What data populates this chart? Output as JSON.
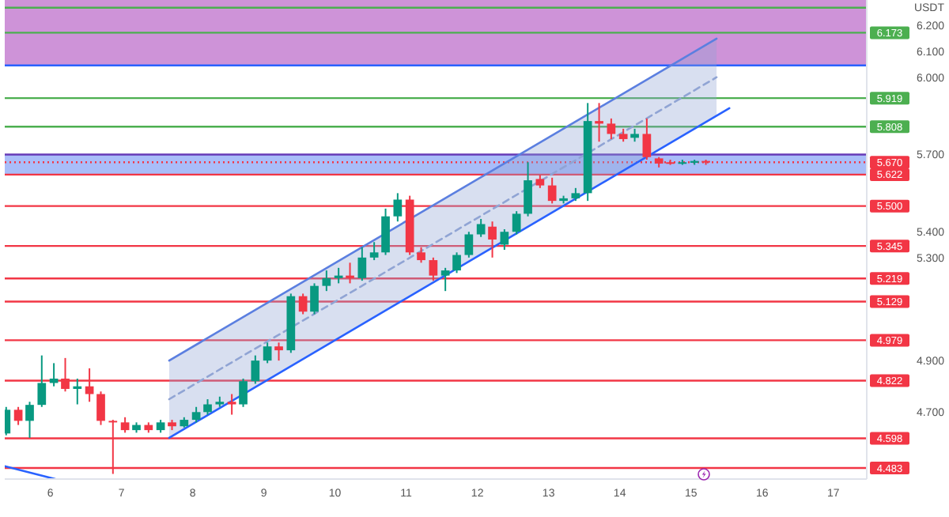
{
  "chart_data": {
    "type": "candlestick",
    "ylabel": "USDT",
    "xlim": [
      5.36,
      17.47
    ],
    "ylim": [
      4.44,
      6.3
    ],
    "xticks": [
      6,
      7,
      8,
      9,
      10,
      11,
      12,
      13,
      14,
      15,
      16,
      17
    ],
    "yticks": [
      {
        "value": 6.2,
        "label": "6.200"
      },
      {
        "value": 6.1,
        "label": "6.100"
      },
      {
        "value": 6.0,
        "label": "6.000"
      },
      {
        "value": 5.7,
        "label": "5.700"
      },
      {
        "value": 5.4,
        "label": "5.400"
      },
      {
        "value": 5.3,
        "label": "5.300"
      },
      {
        "value": 4.9,
        "label": "4.900"
      },
      {
        "value": 4.7,
        "label": "4.700"
      }
    ],
    "bands": [
      {
        "axis": "y",
        "from": 6.046,
        "to": 6.3,
        "color": "#ce93d8"
      },
      {
        "axis": "y",
        "from": 5.622,
        "to": 5.7,
        "color": "#a9bdf9"
      }
    ],
    "ref_lines": [
      {
        "axis": "y",
        "value": 6.27,
        "color": "#4caf50"
      },
      {
        "axis": "y",
        "value": 6.173,
        "label": "6.173",
        "color": "#4caf50"
      },
      {
        "axis": "y",
        "value": 6.046,
        "color": "#2962ff"
      },
      {
        "axis": "y",
        "value": 5.919,
        "label": "5.919",
        "color": "#4caf50"
      },
      {
        "axis": "y",
        "value": 5.808,
        "label": "5.808",
        "color": "#4caf50"
      },
      {
        "axis": "y",
        "value": 5.7,
        "color": "#673ab7"
      },
      {
        "axis": "y",
        "value": 5.67,
        "label": "5.670",
        "color": "#f23645",
        "line_style": "dotted"
      },
      {
        "axis": "y",
        "value": 5.622,
        "label": "5.622",
        "color": "#f23645"
      },
      {
        "axis": "y",
        "value": 5.5,
        "label": "5.500",
        "color": "#f23645"
      },
      {
        "axis": "y",
        "value": 5.345,
        "label": "5.345",
        "color": "#f23645"
      },
      {
        "axis": "y",
        "value": 5.219,
        "label": "5.219",
        "color": "#f23645"
      },
      {
        "axis": "y",
        "value": 5.129,
        "label": "5.129",
        "color": "#f23645"
      },
      {
        "axis": "y",
        "value": 4.979,
        "label": "4.979",
        "color": "#f23645"
      },
      {
        "axis": "y",
        "value": 4.822,
        "label": "4.822",
        "color": "#f23645"
      },
      {
        "axis": "y",
        "value": 4.598,
        "label": "4.598",
        "color": "#f23645"
      },
      {
        "axis": "y",
        "value": 4.483,
        "label": "4.483",
        "color": "#f23645"
      }
    ],
    "series": [
      {
        "type": "line",
        "x": [
          7.67,
          15.36
        ],
        "values": [
          4.75,
          6.0
        ],
        "lower": [
          4.6,
          5.85
        ],
        "upper": [
          4.9,
          6.15
        ],
        "color": "#90a4d4",
        "line_style": "dashed"
      },
      {
        "type": "line",
        "x": [
          7.67,
          15.36
        ],
        "values": [
          4.9,
          6.15
        ],
        "color": "#5b7fe0",
        "line_style": "solid"
      },
      {
        "type": "line",
        "x": [
          7.67,
          15.54
        ],
        "values": [
          4.6,
          5.88
        ],
        "color": "#2962ff",
        "line_style": "solid"
      },
      {
        "type": "line",
        "x": [
          5.36,
          6.07
        ],
        "values": [
          4.49,
          4.44
        ],
        "color": "#2962ff",
        "line_style": "solid"
      },
      {
        "x": [
          5.38,
          5.55,
          5.71,
          5.88,
          6.05,
          6.21,
          6.38,
          6.55,
          6.71,
          6.88,
          7.05,
          7.21,
          7.38,
          7.55,
          7.71,
          7.88,
          8.05,
          8.21,
          8.38,
          8.55,
          8.71,
          8.88,
          9.05,
          9.21,
          9.38,
          9.55,
          9.71,
          9.88,
          10.05,
          10.21,
          10.38,
          10.55,
          10.71,
          10.88,
          11.05,
          11.21,
          11.38,
          11.55,
          11.71,
          11.88,
          12.05,
          12.21,
          12.38,
          12.55,
          12.71,
          12.88,
          13.05,
          13.21,
          13.38,
          13.55,
          13.71,
          13.88,
          14.05,
          14.21,
          14.38,
          14.55,
          14.71,
          14.88,
          15.05,
          15.21
        ],
        "ohlc": [
          [
            4.617,
            4.72,
            4.61,
            4.709
          ],
          [
            4.709,
            4.72,
            4.65,
            4.666
          ],
          [
            4.666,
            4.74,
            4.6,
            4.728
          ],
          [
            4.728,
            4.92,
            4.72,
            4.813
          ],
          [
            4.813,
            4.89,
            4.8,
            4.83
          ],
          [
            4.83,
            4.91,
            4.78,
            4.79
          ],
          [
            4.79,
            4.83,
            4.73,
            4.8
          ],
          [
            4.8,
            4.87,
            4.74,
            4.77
          ],
          [
            4.77,
            4.78,
            4.65,
            4.666
          ],
          [
            4.666,
            4.67,
            4.46,
            4.66
          ],
          [
            4.66,
            4.68,
            4.62,
            4.63
          ],
          [
            4.63,
            4.66,
            4.62,
            4.65
          ],
          [
            4.65,
            4.66,
            4.62,
            4.63
          ],
          [
            4.63,
            4.67,
            4.62,
            4.66
          ],
          [
            4.66,
            4.67,
            4.63,
            4.645
          ],
          [
            4.645,
            4.68,
            4.64,
            4.67
          ],
          [
            4.67,
            4.72,
            4.66,
            4.7
          ],
          [
            4.7,
            4.75,
            4.69,
            4.73
          ],
          [
            4.73,
            4.76,
            4.72,
            4.74
          ],
          [
            4.74,
            4.77,
            4.69,
            4.73
          ],
          [
            4.73,
            4.83,
            4.72,
            4.82
          ],
          [
            4.82,
            4.92,
            4.81,
            4.9
          ],
          [
            4.9,
            4.97,
            4.89,
            4.955
          ],
          [
            4.955,
            4.97,
            4.9,
            4.94
          ],
          [
            4.94,
            5.16,
            4.93,
            5.15
          ],
          [
            5.15,
            5.16,
            5.08,
            5.09
          ],
          [
            5.09,
            5.2,
            5.08,
            5.19
          ],
          [
            5.19,
            5.25,
            5.17,
            5.22
          ],
          [
            5.22,
            5.26,
            5.2,
            5.23
          ],
          [
            5.23,
            5.28,
            5.2,
            5.22
          ],
          [
            5.22,
            5.34,
            5.21,
            5.3
          ],
          [
            5.3,
            5.36,
            5.29,
            5.32
          ],
          [
            5.32,
            5.49,
            5.31,
            5.46
          ],
          [
            5.46,
            5.55,
            5.44,
            5.525
          ],
          [
            5.525,
            5.54,
            5.31,
            5.32
          ],
          [
            5.32,
            5.34,
            5.28,
            5.29
          ],
          [
            5.29,
            5.3,
            5.21,
            5.23
          ],
          [
            5.23,
            5.26,
            5.17,
            5.25
          ],
          [
            5.25,
            5.32,
            5.24,
            5.31
          ],
          [
            5.31,
            5.4,
            5.3,
            5.39
          ],
          [
            5.39,
            5.45,
            5.38,
            5.43
          ],
          [
            5.42,
            5.44,
            5.3,
            5.37
          ],
          [
            5.35,
            5.41,
            5.33,
            5.4
          ],
          [
            5.4,
            5.48,
            5.39,
            5.47
          ],
          [
            5.47,
            5.67,
            5.46,
            5.6
          ],
          [
            5.605,
            5.62,
            5.57,
            5.58
          ],
          [
            5.58,
            5.61,
            5.51,
            5.52
          ],
          [
            5.52,
            5.54,
            5.51,
            5.53
          ],
          [
            5.53,
            5.57,
            5.52,
            5.55
          ],
          [
            5.55,
            5.9,
            5.52,
            5.83
          ],
          [
            5.83,
            5.9,
            5.75,
            5.82
          ],
          [
            5.82,
            5.84,
            5.76,
            5.78
          ],
          [
            5.78,
            5.8,
            5.75,
            5.76
          ],
          [
            5.765,
            5.8,
            5.75,
            5.78
          ],
          [
            5.78,
            5.84,
            5.68,
            5.69
          ],
          [
            5.685,
            5.69,
            5.65,
            5.665
          ],
          [
            5.67,
            5.68,
            5.66,
            5.668
          ],
          [
            5.668,
            5.68,
            5.66,
            5.67
          ],
          [
            5.668,
            5.68,
            5.66,
            5.675
          ],
          [
            5.675,
            5.68,
            5.66,
            5.67
          ]
        ],
        "colors": [
          "#089981",
          "#f23645",
          "#089981",
          "#089981",
          "#089981",
          "#f23645",
          "#089981",
          "#f23645",
          "#f23645",
          "#f23645",
          "#f23645",
          "#089981",
          "#f23645",
          "#089981",
          "#f23645",
          "#089981",
          "#089981",
          "#089981",
          "#089981",
          "#f23645",
          "#089981",
          "#089981",
          "#089981",
          "#f23645",
          "#089981",
          "#f23645",
          "#089981",
          "#089981",
          "#089981",
          "#f23645",
          "#089981",
          "#089981",
          "#089981",
          "#089981",
          "#f23645",
          "#f23645",
          "#f23645",
          "#089981",
          "#089981",
          "#089981",
          "#089981",
          "#f23645",
          "#089981",
          "#089981",
          "#089981",
          "#f23645",
          "#f23645",
          "#089981",
          "#089981",
          "#089981",
          "#f23645",
          "#f23645",
          "#f23645",
          "#089981",
          "#f23645",
          "#f23645",
          "#f23645",
          "#089981",
          "#089981",
          "#f23645"
        ]
      }
    ]
  }
}
